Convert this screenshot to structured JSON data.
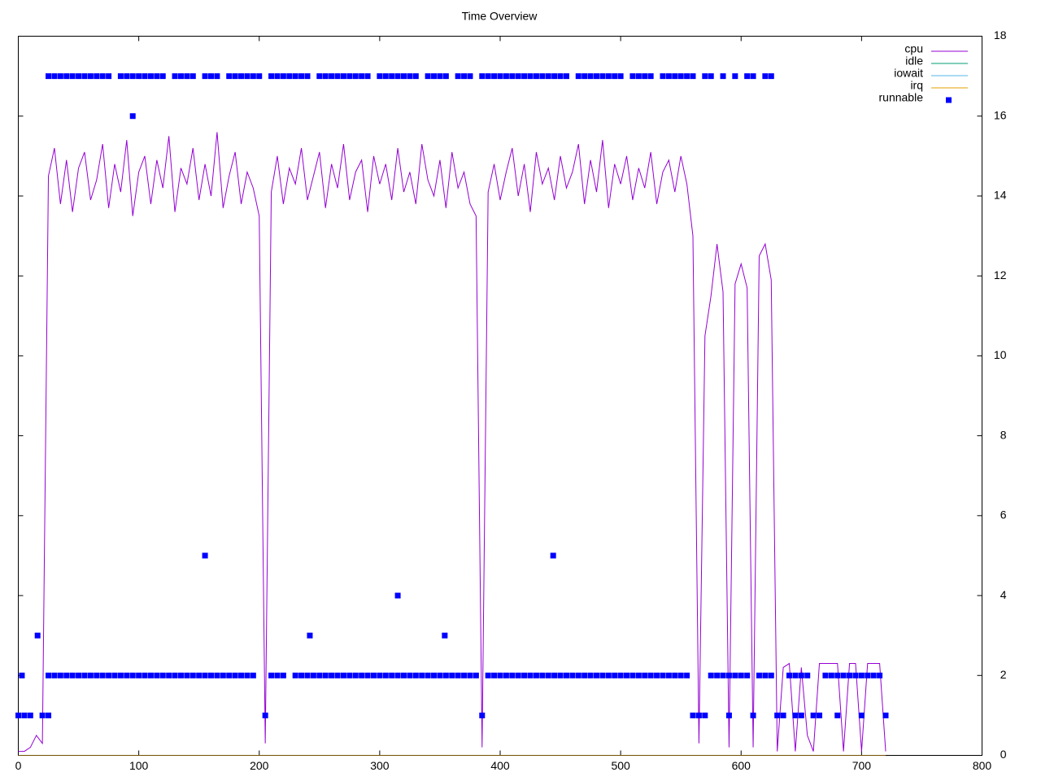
{
  "chart_data": {
    "type": "line",
    "title": "Time Overview",
    "xlim": [
      0,
      800
    ],
    "xticks": [
      0,
      100,
      200,
      300,
      400,
      500,
      600,
      700,
      800
    ],
    "ylim": [
      0,
      18
    ],
    "yticks": [
      0,
      2,
      4,
      6,
      8,
      10,
      12,
      14,
      16,
      18
    ],
    "legend": "top-right",
    "grid": false,
    "series": [
      {
        "name": "cpu",
        "color": "#9400d3",
        "style": "line",
        "x": [
          0,
          5,
          10,
          15,
          20,
          25,
          30,
          35,
          40,
          45,
          50,
          55,
          60,
          65,
          70,
          75,
          80,
          85,
          90,
          95,
          100,
          105,
          110,
          115,
          120,
          125,
          130,
          135,
          140,
          145,
          150,
          155,
          160,
          165,
          170,
          175,
          180,
          185,
          190,
          195,
          200,
          205,
          210,
          215,
          220,
          225,
          230,
          235,
          240,
          245,
          250,
          255,
          260,
          265,
          270,
          275,
          280,
          285,
          290,
          295,
          300,
          305,
          310,
          315,
          320,
          325,
          330,
          335,
          340,
          345,
          350,
          355,
          360,
          365,
          370,
          375,
          380,
          385,
          390,
          395,
          400,
          405,
          410,
          415,
          420,
          425,
          430,
          435,
          440,
          445,
          450,
          455,
          460,
          465,
          470,
          475,
          480,
          485,
          490,
          495,
          500,
          505,
          510,
          515,
          520,
          525,
          530,
          535,
          540,
          545,
          550,
          555,
          560,
          565,
          570,
          575,
          580,
          585,
          590,
          595,
          600,
          605,
          610,
          615,
          620,
          625,
          630,
          635,
          640,
          645,
          650,
          655,
          660,
          665,
          670,
          675,
          680,
          685,
          690,
          695,
          700,
          705,
          710,
          715,
          720
        ],
        "values": [
          0.1,
          0.1,
          0.2,
          0.5,
          0.3,
          14.5,
          15.2,
          13.8,
          14.9,
          13.6,
          14.7,
          15.1,
          13.9,
          14.4,
          15.3,
          13.7,
          14.8,
          14.1,
          15.4,
          13.5,
          14.6,
          15.0,
          13.8,
          14.9,
          14.2,
          15.5,
          13.6,
          14.7,
          14.3,
          15.2,
          13.9,
          14.8,
          14.0,
          15.6,
          13.7,
          14.5,
          15.1,
          13.8,
          14.6,
          14.2,
          13.5,
          0.3,
          14.1,
          15.0,
          13.8,
          14.7,
          14.3,
          15.2,
          13.9,
          14.5,
          15.1,
          13.7,
          14.8,
          14.2,
          15.3,
          13.9,
          14.6,
          14.9,
          13.6,
          15.0,
          14.3,
          14.8,
          13.9,
          15.2,
          14.1,
          14.6,
          13.8,
          15.3,
          14.4,
          14.0,
          14.9,
          13.7,
          15.1,
          14.2,
          14.6,
          13.8,
          13.5,
          0.2,
          14.1,
          14.8,
          13.9,
          14.6,
          15.2,
          14.0,
          14.8,
          13.6,
          15.1,
          14.3,
          14.7,
          13.9,
          15.0,
          14.2,
          14.6,
          15.3,
          13.8,
          14.9,
          14.1,
          15.4,
          13.7,
          14.8,
          14.3,
          15.0,
          13.9,
          14.7,
          14.2,
          15.1,
          13.8,
          14.6,
          14.9,
          14.1,
          15.0,
          14.3,
          13.0,
          0.3,
          10.5,
          11.5,
          12.8,
          11.6,
          0.2,
          11.8,
          12.3,
          11.7,
          0.2,
          12.5,
          12.8,
          11.9,
          0.1,
          2.2,
          2.3,
          0.1,
          2.2,
          0.5,
          0.1,
          2.3,
          2.3,
          2.3,
          2.3,
          0.1,
          2.3,
          2.3,
          0.1,
          2.3,
          2.3,
          2.3,
          0.1
        ]
      },
      {
        "name": "idle",
        "color": "#009e73",
        "style": "line",
        "x": [
          0,
          720
        ],
        "values": [
          0,
          0
        ]
      },
      {
        "name": "iowait",
        "color": "#56b4e9",
        "style": "line",
        "x": [
          0,
          720
        ],
        "values": [
          0,
          0
        ]
      },
      {
        "name": "irq",
        "color": "#e69f00",
        "style": "line",
        "x": [
          0,
          720
        ],
        "values": [
          0,
          0
        ]
      },
      {
        "name": "runnable",
        "color": "#0000ff",
        "style": "points",
        "x": [
          0,
          5,
          10,
          20,
          25,
          3,
          16,
          95,
          155,
          242,
          315,
          354,
          444,
          25,
          30,
          35,
          40,
          45,
          50,
          55,
          60,
          65,
          70,
          75,
          85,
          90,
          95,
          100,
          105,
          110,
          115,
          120,
          130,
          135,
          140,
          145,
          155,
          160,
          165,
          175,
          180,
          185,
          190,
          195,
          200,
          210,
          215,
          220,
          225,
          230,
          235,
          240,
          250,
          255,
          260,
          265,
          270,
          275,
          280,
          285,
          290,
          300,
          305,
          310,
          315,
          320,
          325,
          330,
          340,
          345,
          350,
          355,
          365,
          370,
          375,
          385,
          390,
          395,
          400,
          405,
          410,
          415,
          420,
          425,
          430,
          435,
          440,
          445,
          450,
          455,
          465,
          470,
          475,
          480,
          485,
          490,
          495,
          500,
          510,
          515,
          520,
          525,
          535,
          540,
          545,
          550,
          555,
          560,
          570,
          575,
          585,
          595,
          605,
          610,
          620,
          625,
          25,
          30,
          35,
          40,
          45,
          50,
          55,
          60,
          65,
          70,
          75,
          80,
          85,
          90,
          95,
          100,
          105,
          110,
          115,
          120,
          125,
          130,
          135,
          140,
          145,
          150,
          155,
          160,
          165,
          170,
          175,
          180,
          185,
          190,
          195,
          210,
          215,
          220,
          230,
          235,
          240,
          245,
          250,
          255,
          260,
          265,
          270,
          275,
          280,
          285,
          290,
          295,
          300,
          305,
          310,
          315,
          320,
          325,
          330,
          335,
          340,
          345,
          350,
          355,
          360,
          365,
          370,
          375,
          380,
          390,
          395,
          400,
          405,
          410,
          415,
          420,
          425,
          430,
          435,
          440,
          445,
          450,
          455,
          460,
          465,
          470,
          475,
          480,
          485,
          490,
          495,
          500,
          505,
          510,
          515,
          520,
          525,
          530,
          535,
          540,
          545,
          550,
          555,
          575,
          580,
          585,
          590,
          595,
          600,
          605,
          615,
          620,
          625,
          640,
          645,
          650,
          655,
          670,
          675,
          680,
          685,
          690,
          695,
          700,
          705,
          710,
          715,
          205,
          385,
          560,
          565,
          570,
          590,
          610,
          630,
          635,
          645,
          650,
          660,
          665,
          680,
          700,
          720
        ],
        "values": [
          1,
          1,
          1,
          1,
          1,
          2,
          3,
          16,
          5,
          3,
          4,
          3,
          5,
          17,
          17,
          17,
          17,
          17,
          17,
          17,
          17,
          17,
          17,
          17,
          17,
          17,
          17,
          17,
          17,
          17,
          17,
          17,
          17,
          17,
          17,
          17,
          17,
          17,
          17,
          17,
          17,
          17,
          17,
          17,
          17,
          17,
          17,
          17,
          17,
          17,
          17,
          17,
          17,
          17,
          17,
          17,
          17,
          17,
          17,
          17,
          17,
          17,
          17,
          17,
          17,
          17,
          17,
          17,
          17,
          17,
          17,
          17,
          17,
          17,
          17,
          17,
          17,
          17,
          17,
          17,
          17,
          17,
          17,
          17,
          17,
          17,
          17,
          17,
          17,
          17,
          17,
          17,
          17,
          17,
          17,
          17,
          17,
          17,
          17,
          17,
          17,
          17,
          17,
          17,
          17,
          17,
          17,
          17,
          17,
          17,
          17,
          17,
          17,
          17,
          17,
          17,
          2,
          2,
          2,
          2,
          2,
          2,
          2,
          2,
          2,
          2,
          2,
          2,
          2,
          2,
          2,
          2,
          2,
          2,
          2,
          2,
          2,
          2,
          2,
          2,
          2,
          2,
          2,
          2,
          2,
          2,
          2,
          2,
          2,
          2,
          2,
          2,
          2,
          2,
          2,
          2,
          2,
          2,
          2,
          2,
          2,
          2,
          2,
          2,
          2,
          2,
          2,
          2,
          2,
          2,
          2,
          2,
          2,
          2,
          2,
          2,
          2,
          2,
          2,
          2,
          2,
          2,
          2,
          2,
          2,
          2,
          2,
          2,
          2,
          2,
          2,
          2,
          2,
          2,
          2,
          2,
          2,
          2,
          2,
          2,
          2,
          2,
          2,
          2,
          2,
          2,
          2,
          2,
          2,
          2,
          2,
          2,
          2,
          2,
          2,
          2,
          2,
          2,
          2,
          2,
          2,
          2,
          2,
          2,
          2,
          2,
          2,
          2,
          2,
          2,
          2,
          2,
          2,
          2,
          2,
          2,
          2,
          2,
          2,
          2,
          2,
          2,
          2,
          1,
          1,
          1,
          1,
          1,
          1,
          1,
          1,
          1,
          1,
          1,
          1,
          1,
          1,
          1,
          1
        ]
      }
    ]
  }
}
